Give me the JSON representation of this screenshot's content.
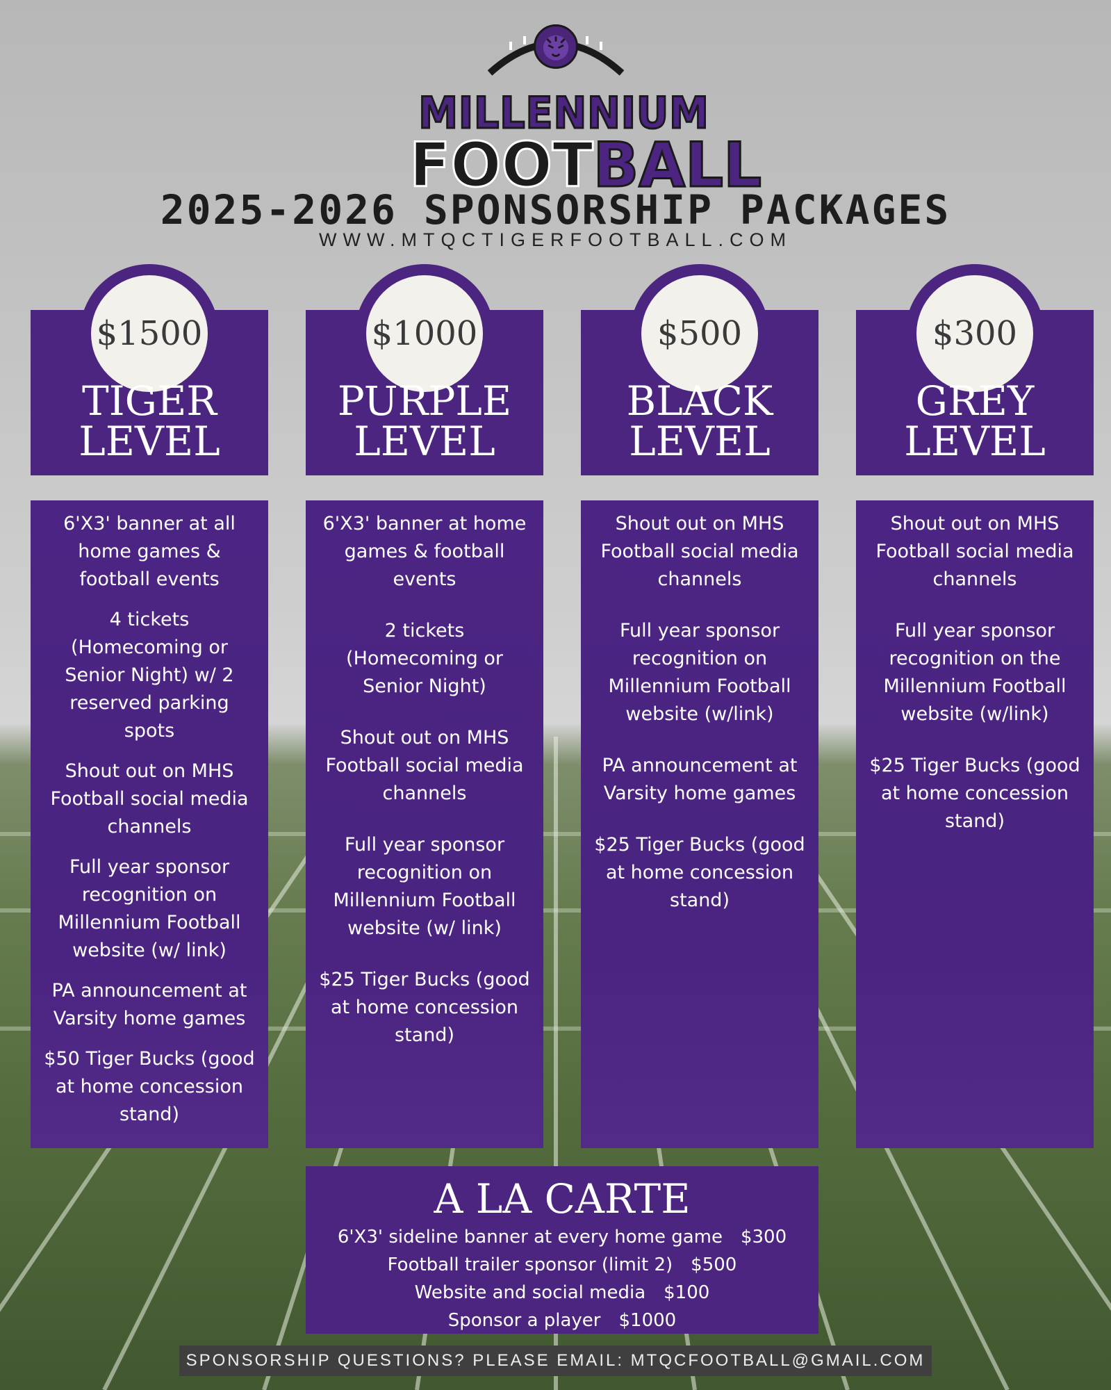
{
  "logo": {
    "line1": "MILLENNIUM",
    "line2_a": "FOOT",
    "line2_b": "BALL"
  },
  "headline": "2025-2026 SPONSORSHIP PACKAGES",
  "website": "WWW.MTQCTIGERFOOTBALL.COM",
  "packages": [
    {
      "price": "$1500",
      "title_1": "TIGER",
      "title_2": "LEVEL",
      "items": [
        "6'X3' banner at all home games & football events",
        "4 tickets (Homecoming or Senior Night) w/ 2 reserved parking spots",
        "Shout out on MHS Football social media channels",
        "Full year sponsor recognition on Millennium Football website (w/ link)",
        "PA announcement at Varsity home games",
        "$50 Tiger Bucks (good at home concession stand)"
      ]
    },
    {
      "price": "$1000",
      "title_1": "PURPLE",
      "title_2": "LEVEL",
      "items": [
        "6'X3' banner at home games & football events",
        "2 tickets (Homecoming or Senior Night)",
        "Shout out on MHS Football social media channels",
        "Full year sponsor recognition on Millennium Football website (w/ link)",
        "$25 Tiger Bucks (good at home concession stand)"
      ]
    },
    {
      "price": "$500",
      "title_1": "BLACK",
      "title_2": "LEVEL",
      "items": [
        "Shout out on MHS Football social media channels",
        "Full year sponsor recognition on Millennium Football website (w/link)",
        "PA announcement at Varsity home games",
        "$25 Tiger Bucks (good at home concession stand)"
      ]
    },
    {
      "price": "$300",
      "title_1": "GREY",
      "title_2": "LEVEL",
      "items": [
        "Shout out on MHS Football social media channels",
        "Full year sponsor recognition on the Millennium Football website (w/link)",
        "$25 Tiger Bucks (good at home concession stand)"
      ]
    }
  ],
  "a_la_carte": {
    "title": "A LA CARTE",
    "rows": [
      {
        "label": "6'X3' sideline banner at every home game",
        "price": "$300"
      },
      {
        "label": "Football trailer sponsor (limit 2)",
        "price": "$500"
      },
      {
        "label": "Website and social media",
        "price": "$100"
      },
      {
        "label": "Sponsor a player",
        "price": "$1000"
      }
    ]
  },
  "footer": "SPONSORSHIP QUESTIONS?  PLEASE EMAIL: MTQCFOOTBALL@GMAIL.COM",
  "colors": {
    "purple": "#4b2580",
    "circle": "#f3f1ec",
    "text_dark": "#1d1d1d",
    "field_green": "#5a7343"
  }
}
